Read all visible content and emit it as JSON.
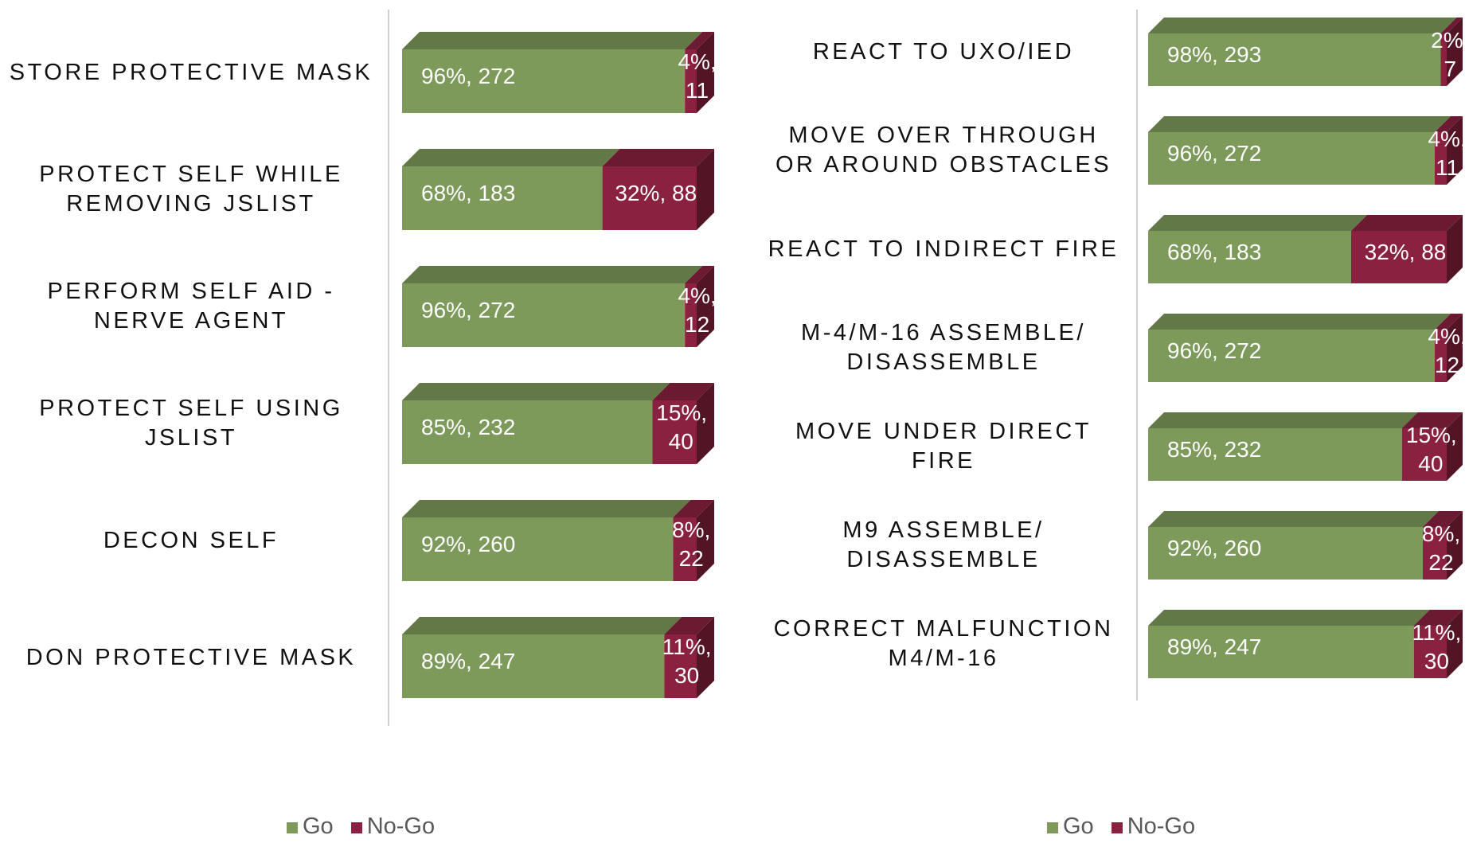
{
  "chart_data": [
    {
      "type": "bar",
      "orientation": "horizontal",
      "stacked": true,
      "xlim": [
        0,
        100
      ],
      "categories": [
        "STORE PROTECTIVE MASK",
        "PROTECT SELF WHILE REMOVING JSLIST",
        "PERFORM SELF AID - NERVE AGENT",
        "PROTECT SELF USING JSLIST",
        "DECON SELF",
        "DON PROTECTIVE MASK"
      ],
      "series": [
        {
          "name": "Go",
          "color": "#7d9a5b",
          "values": [
            96,
            68,
            96,
            85,
            92,
            89
          ],
          "value_labels": [
            "96%, 272",
            "68%, 183",
            "96%, 272",
            "85%, 232",
            "92%, 260",
            "89%, 247"
          ]
        },
        {
          "name": "No-Go",
          "color": "#8b2140",
          "values": [
            4,
            32,
            4,
            15,
            8,
            11
          ],
          "value_labels": [
            "4%, 11",
            "32%, 88",
            "4%, 12",
            "15%, 40",
            "8%, 22",
            "11%, 30"
          ]
        }
      ],
      "legend": "bottom"
    },
    {
      "type": "bar",
      "orientation": "horizontal",
      "stacked": true,
      "xlim": [
        0,
        100
      ],
      "categories": [
        "REACT TO UXO/IED",
        "MOVE OVER THROUGH OR AROUND OBSTACLES",
        "REACT TO INDIRECT FIRE",
        "M-4/M-16 ASSEMBLE/ DISASSEMBLE",
        "MOVE UNDER DIRECT FIRE",
        "M9 ASSEMBLE/ DISASSEMBLE",
        "CORRECT MALFUNCTION M4/M-16"
      ],
      "series": [
        {
          "name": "Go",
          "color": "#7d9a5b",
          "values": [
            98,
            96,
            68,
            96,
            85,
            92,
            89
          ],
          "value_labels": [
            "98%, 293",
            "96%, 272",
            "68%, 183",
            "96%, 272",
            "85%, 232",
            "92%, 260",
            "89%, 247"
          ]
        },
        {
          "name": "No-Go",
          "color": "#8b2140",
          "values": [
            2,
            4,
            32,
            4,
            15,
            8,
            11
          ],
          "value_labels": [
            "2%, 7",
            "4%, 11",
            "32%, 88",
            "4%, 12",
            "15%, 40",
            "8%, 22",
            "11%, 30"
          ]
        }
      ],
      "legend": "bottom"
    }
  ]
}
